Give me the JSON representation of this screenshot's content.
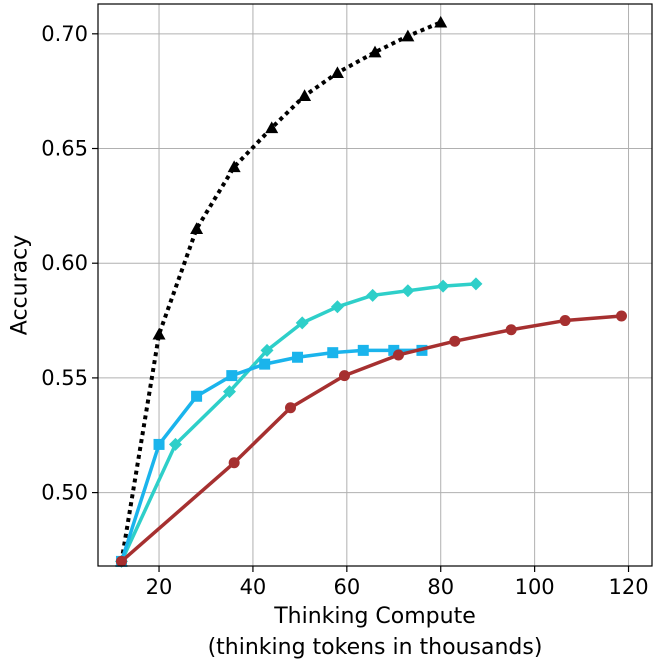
{
  "chart_data": {
    "type": "line",
    "xlabel": "Thinking Compute",
    "xlabel_line2": "(thinking tokens in thousands)",
    "ylabel": "Accuracy",
    "xlim": [
      7,
      125
    ],
    "ylim": [
      0.468,
      0.713
    ],
    "xticks": [
      20,
      40,
      60,
      80,
      100,
      120
    ],
    "yticks": [
      0.5,
      0.55,
      0.6,
      0.65,
      0.7
    ],
    "ytick_labels": [
      "0.50",
      "0.55",
      "0.60",
      "0.65",
      "0.70"
    ],
    "grid": true,
    "series": [
      {
        "color": "#000000",
        "linestyle": "dotted",
        "marker": "triangle",
        "x": [
          12,
          20,
          28,
          36,
          44,
          51,
          58,
          66,
          73,
          80
        ],
        "y": [
          0.47,
          0.569,
          0.615,
          0.642,
          0.659,
          0.673,
          0.683,
          0.692,
          0.699,
          0.705
        ]
      },
      {
        "color": "#2ecfc9",
        "linestyle": "solid",
        "marker": "diamond",
        "x": [
          12,
          23.5,
          35,
          43,
          50.5,
          58,
          65.5,
          73,
          80.5,
          87.5
        ],
        "y": [
          0.47,
          0.521,
          0.544,
          0.562,
          0.574,
          0.581,
          0.586,
          0.588,
          0.59,
          0.591
        ]
      },
      {
        "color": "#1ab4ec",
        "linestyle": "solid",
        "marker": "square",
        "x": [
          12,
          20,
          28,
          35.5,
          42.5,
          49.5,
          57,
          63.5,
          70,
          76
        ],
        "y": [
          0.47,
          0.521,
          0.542,
          0.551,
          0.556,
          0.559,
          0.561,
          0.562,
          0.562,
          0.562
        ]
      },
      {
        "color": "#a63030",
        "linestyle": "solid",
        "marker": "circle",
        "x": [
          12,
          36,
          48,
          59.5,
          71,
          83,
          95,
          106.5,
          118.5
        ],
        "y": [
          0.47,
          0.513,
          0.537,
          0.551,
          0.56,
          0.566,
          0.571,
          0.575,
          0.577
        ]
      }
    ]
  }
}
